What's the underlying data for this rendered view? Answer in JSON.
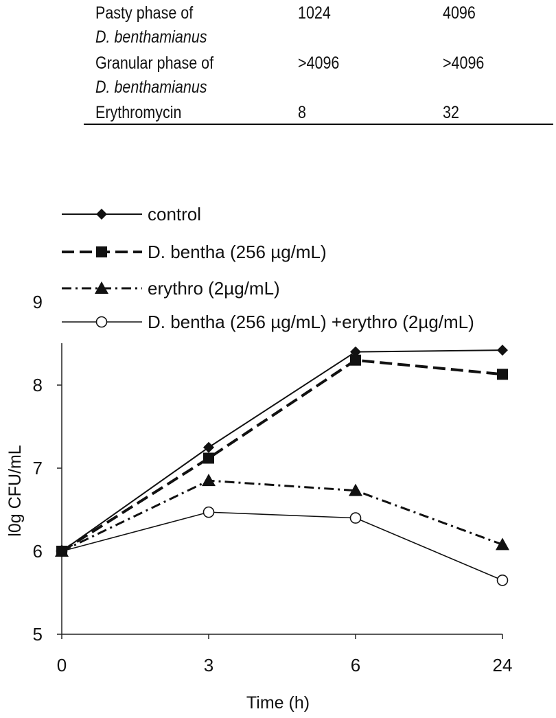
{
  "table": {
    "rows": [
      {
        "name": "Pasty phase of",
        "name_cont": "D. benthamianus",
        "col1": "1024",
        "col2": "4096"
      },
      {
        "name": "Granular phase of",
        "name_cont": "D. benthamianus",
        "col1": ">4096",
        "col2": ">4096"
      },
      {
        "name": "Erythromycin",
        "name_cont": "",
        "col1": "8",
        "col2": "32"
      }
    ]
  },
  "chart_data": {
    "type": "line",
    "xlabel": "Time (h)",
    "ylabel": "l0g CFU/mL",
    "categories": [
      "0",
      "3",
      "6",
      "24"
    ],
    "ylim": [
      5,
      9
    ],
    "yticks": [
      "5",
      "6",
      "7",
      "8",
      "9"
    ],
    "grid": false,
    "legend_position": "top-left",
    "series": [
      {
        "name": "control",
        "values": [
          6.0,
          7.25,
          8.4,
          8.42
        ],
        "marker": "diamond",
        "line": "solid"
      },
      {
        "name": "D. bentha (256 µg/mL)",
        "values": [
          6.0,
          7.12,
          8.3,
          8.13
        ],
        "marker": "square",
        "line": "dashed"
      },
      {
        "name": "erythro (2µg/mL)",
        "values": [
          6.0,
          6.85,
          6.73,
          6.08
        ],
        "marker": "triangle",
        "line": "dashdot"
      },
      {
        "name": "D. bentha (256 µg/mL) +erythro (2µg/mL)",
        "values": [
          6.0,
          6.47,
          6.4,
          5.65
        ],
        "marker": "circle-open",
        "line": "solid-thin"
      }
    ]
  }
}
